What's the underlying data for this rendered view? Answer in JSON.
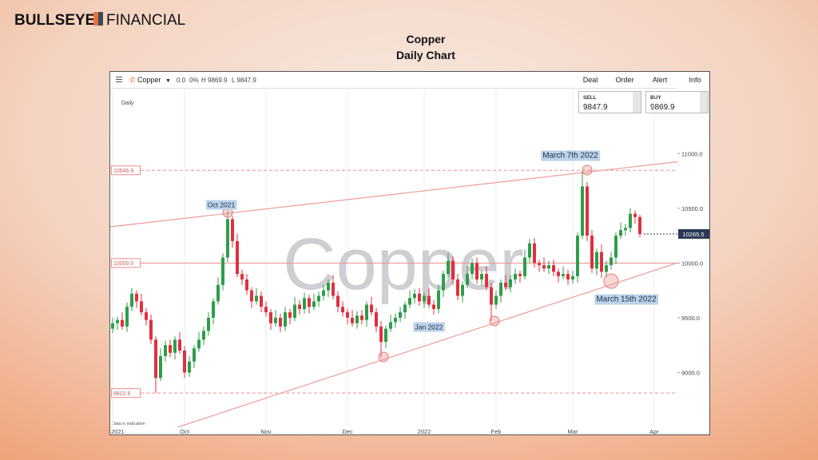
{
  "brand": {
    "name": "BULLSEYE",
    "suffix": "FINANCIAL"
  },
  "slide": {
    "title": "Copper",
    "subtitle": "Daily Chart"
  },
  "platform": {
    "instrument": "Copper",
    "change": "0.0",
    "change_pct": "0%",
    "high": "H 9869.9",
    "low": "L 9847.9",
    "menu": [
      "Deal",
      "Order",
      "Alert",
      "Info"
    ],
    "sell": {
      "label": "SELL",
      "price": "9847.9"
    },
    "buy": {
      "label": "BUY",
      "price": "9869.9"
    }
  },
  "chart_data": {
    "type": "candlestick",
    "timeframe": "Daily",
    "watermark": "Copper",
    "note": "Data is indicative",
    "up_color": "#2e9e4a",
    "down_color": "#e0303f",
    "grid": true,
    "ylim": [
      8500,
      11600
    ],
    "yticks": [
      {
        "value": 9000,
        "label": "9000.0"
      },
      {
        "value": 9500,
        "label": "9500.0"
      },
      {
        "value": 10000,
        "label": "10000.0"
      },
      {
        "value": 10500,
        "label": "10500.0"
      },
      {
        "value": 11000,
        "label": "11000.0"
      }
    ],
    "levels": [
      {
        "value": 10846.9,
        "dashed": true
      },
      {
        "value": 10000,
        "label": "10000.0",
        "dashed": false
      },
      {
        "value": 8812.6,
        "dashed": true
      }
    ],
    "last_price": 10265.5,
    "annotations": [
      "Oct 2021",
      "Jan 2022",
      "March 7th 2022",
      "March 15th 2022"
    ],
    "categories": [
      "2021",
      null,
      null,
      null,
      null,
      null,
      null,
      null,
      null,
      null,
      null,
      null,
      null,
      null,
      null,
      "Oct",
      null,
      null,
      null,
      null,
      null,
      null,
      null,
      null,
      null,
      null,
      null,
      null,
      null,
      null,
      null,
      null,
      "Nov",
      null,
      null,
      null,
      null,
      null,
      null,
      null,
      null,
      null,
      null,
      null,
      null,
      null,
      null,
      null,
      null,
      "Dec",
      null,
      null,
      null,
      null,
      null,
      null,
      null,
      null,
      null,
      null,
      null,
      null,
      null,
      null,
      null,
      "2022",
      null,
      null,
      null,
      null,
      null,
      null,
      null,
      null,
      null,
      null,
      null,
      null,
      null,
      null,
      "Feb",
      null,
      null,
      null,
      null,
      null,
      null,
      null,
      null,
      null,
      null,
      null,
      null,
      null,
      null,
      null,
      "Mar",
      null,
      null,
      null,
      null,
      null,
      null,
      null,
      null,
      null,
      null,
      null,
      null,
      null,
      null,
      null,
      null,
      "Apr"
    ],
    "open": [
      9400,
      9450,
      9480,
      9420,
      9600,
      9720,
      9650,
      9550,
      9480,
      9300,
      8950,
      9150,
      9250,
      9180,
      9300,
      9200,
      9000,
      9100,
      9220,
      9300,
      9380,
      9500,
      9650,
      9800,
      10050,
      10400,
      10200,
      9900,
      9850,
      9750,
      9650,
      9700,
      9600,
      9550,
      9450,
      9500,
      9420,
      9550,
      9500,
      9620,
      9580,
      9680,
      9600,
      9650,
      9700,
      9750,
      9820,
      9700,
      9600,
      9550,
      9500,
      9450,
      9520,
      9480,
      9620,
      9550,
      9420,
      9280,
      9400,
      9460,
      9500,
      9550,
      9620,
      9680,
      9720,
      9650,
      9700,
      9620,
      9580,
      9750,
      9900,
      10020,
      9850,
      9700,
      9800,
      9900,
      10000,
      9850,
      9900,
      9780,
      9620,
      9700,
      9820,
      9780,
      9850,
      9900,
      9880,
      10050,
      10180,
      10000,
      9980,
      9950,
      9980,
      9920,
      9880,
      9900,
      9850,
      9880,
      10250,
      10700,
      10250,
      9950,
      10100,
      9920,
      9980,
      10050,
      10250,
      10300,
      10320,
      10450,
      10420,
      null,
      null,
      null
    ],
    "high": [
      9500,
      9510,
      9550,
      9640,
      9770,
      9750,
      9720,
      9590,
      9530,
      9330,
      9220,
      9290,
      9300,
      9330,
      9370,
      9240,
      9150,
      9250,
      9370,
      9420,
      9550,
      9680,
      9870,
      10090,
      10480,
      10430,
      10270,
      9940,
      9900,
      9780,
      9770,
      9740,
      9650,
      9580,
      9570,
      9540,
      9600,
      9580,
      9690,
      9660,
      9730,
      9710,
      9720,
      9740,
      9800,
      9850,
      9890,
      9740,
      9650,
      9580,
      9570,
      9560,
      9570,
      9650,
      9690,
      9590,
      9470,
      9430,
      9530,
      9540,
      9600,
      9650,
      9750,
      9760,
      9770,
      9730,
      9770,
      9660,
      9800,
      9930,
      10090,
      10060,
      9900,
      9830,
      9970,
      10040,
      10050,
      9930,
      9970,
      9820,
      9750,
      9850,
      9890,
      9890,
      9950,
      9930,
      10120,
      10220,
      10230,
      10030,
      10050,
      10020,
      10030,
      9950,
      9970,
      9940,
      9930,
      10280,
      10846.9,
      10740,
      10300,
      10130,
      10170,
      10020,
      10100,
      10280,
      10370,
      10360,
      10500,
      10480,
      10440,
      null,
      null,
      null
    ],
    "low": [
      9360,
      9390,
      9390,
      9370,
      9560,
      9590,
      9520,
      9430,
      9260,
      8812.6,
      8920,
      9100,
      9140,
      9120,
      9170,
      8950,
      8960,
      9040,
      9190,
      9250,
      9340,
      9440,
      9620,
      9750,
      10010,
      10140,
      9870,
      9800,
      9710,
      9590,
      9620,
      9550,
      9510,
      9390,
      9420,
      9370,
      9380,
      9440,
      9470,
      9530,
      9540,
      9540,
      9570,
      9600,
      9660,
      9690,
      9670,
      9550,
      9510,
      9440,
      9420,
      9400,
      9440,
      9420,
      9520,
      9370,
      9140,
      9220,
      9370,
      9410,
      9460,
      9490,
      9590,
      9630,
      9610,
      9590,
      9590,
      9530,
      9540,
      9690,
      9870,
      9800,
      9660,
      9640,
      9770,
      9850,
      9810,
      9790,
      9750,
      9470,
      9580,
      9640,
      9750,
      9730,
      9810,
      9820,
      9850,
      10000,
      9960,
      9920,
      9920,
      9900,
      9880,
      9820,
      9850,
      9800,
      9810,
      9820,
      10220,
      10200,
      9910,
      9890,
      9860,
      9870,
      9940,
      9990,
      10220,
      10250,
      10280,
      10360,
      10235.5,
      null,
      null,
      null
    ],
    "close": [
      9450,
      9480,
      9420,
      9600,
      9720,
      9650,
      9550,
      9480,
      9300,
      8950,
      9150,
      9250,
      9180,
      9300,
      9200,
      9000,
      9100,
      9220,
      9300,
      9380,
      9500,
      9650,
      9800,
      10050,
      10400,
      10200,
      9900,
      9850,
      9750,
      9650,
      9700,
      9600,
      9550,
      9450,
      9500,
      9420,
      9550,
      9500,
      9620,
      9580,
      9680,
      9600,
      9650,
      9700,
      9750,
      9820,
      9700,
      9600,
      9550,
      9500,
      9450,
      9520,
      9480,
      9620,
      9550,
      9420,
      9280,
      9400,
      9460,
      9500,
      9550,
      9620,
      9680,
      9720,
      9650,
      9700,
      9620,
      9580,
      9750,
      9900,
      10020,
      9850,
      9700,
      9800,
      9900,
      10000,
      9850,
      9900,
      9780,
      9620,
      9700,
      9820,
      9780,
      9850,
      9900,
      9880,
      10050,
      10180,
      10000,
      9980,
      9950,
      9980,
      9920,
      9880,
      9900,
      9850,
      9880,
      10250,
      10700,
      10250,
      9950,
      10100,
      9920,
      9980,
      10050,
      10250,
      10300,
      10320,
      10450,
      10420,
      10265.5,
      null,
      null,
      null
    ]
  }
}
